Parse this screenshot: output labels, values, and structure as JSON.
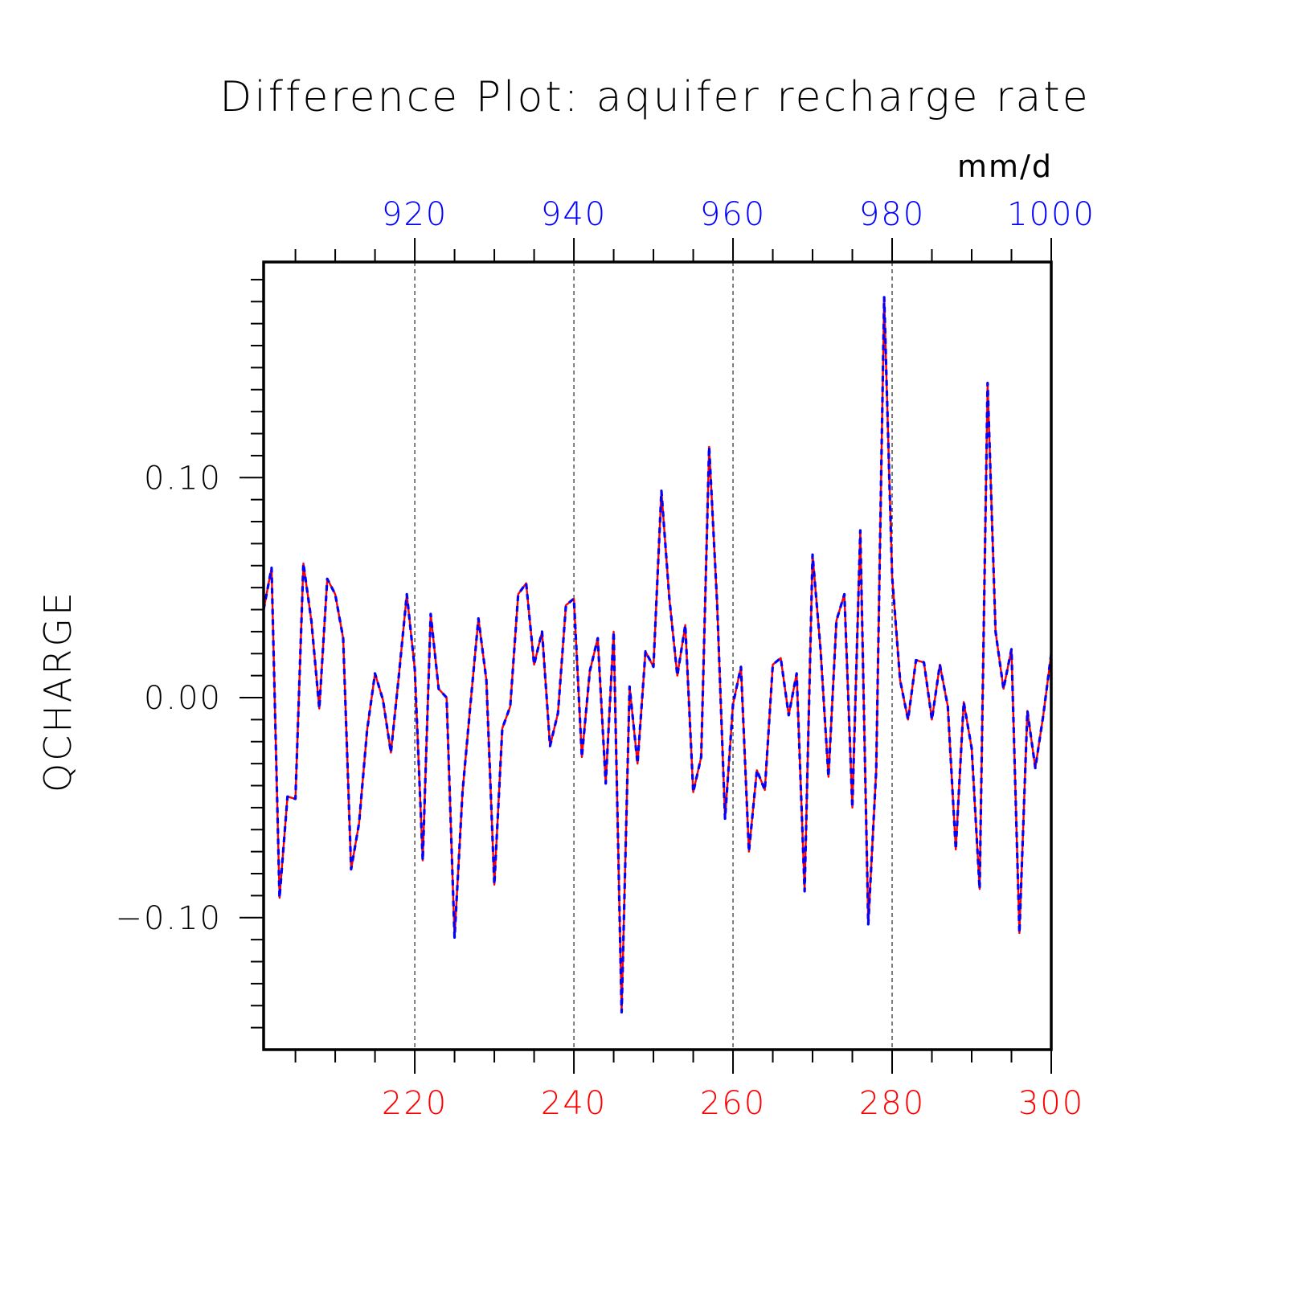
{
  "chart_data": {
    "type": "line",
    "title": "Difference Plot: aquifer recharge rate",
    "units": "mm/d",
    "ylabel": "QCHARGE",
    "xlabel": "",
    "ylim": [
      -0.16,
      0.198
    ],
    "y_ticks": [
      -0.1,
      0.0,
      0.1
    ],
    "y_tick_labels": [
      "−0.10",
      "0.00",
      "0.10"
    ],
    "bottom_axis": {
      "color": "#ff0000",
      "range": [
        201,
        300
      ],
      "ticks": [
        220,
        240,
        260,
        280,
        300
      ],
      "tick_labels": [
        "220",
        "240",
        "260",
        "280",
        "300"
      ]
    },
    "top_axis": {
      "color": "#0000ff",
      "range": [
        901,
        1000
      ],
      "ticks": [
        920,
        940,
        960,
        980,
        1000
      ],
      "tick_labels": [
        "920",
        "940",
        "960",
        "980",
        "1000"
      ]
    },
    "grid": "vertical dashed at major x ticks",
    "series": [
      {
        "color": "#ff0000",
        "style": "solid",
        "axis": "bottom",
        "x_start": 201,
        "values": [
          0.04,
          0.059,
          -0.091,
          -0.045,
          -0.046,
          0.061,
          0.035,
          -0.005,
          0.054,
          0.047,
          0.027,
          -0.078,
          -0.057,
          -0.015,
          0.011,
          -0.001,
          -0.025,
          0.01,
          0.047,
          0.013,
          -0.074,
          0.038,
          0.004,
          0.0,
          -0.109,
          -0.043,
          -0.003,
          0.036,
          0.008,
          -0.085,
          -0.014,
          -0.004,
          0.047,
          0.052,
          0.015,
          0.03,
          -0.022,
          -0.007,
          0.042,
          0.045,
          -0.027,
          0.012,
          0.027,
          -0.039,
          0.03,
          -0.143,
          0.005,
          -0.03,
          0.021,
          0.014,
          0.094,
          0.045,
          0.01,
          0.033,
          -0.043,
          -0.027,
          0.114,
          0.043,
          -0.055,
          -0.003,
          0.014,
          -0.07,
          -0.033,
          -0.042,
          0.015,
          0.018,
          -0.008,
          0.011,
          -0.088,
          0.065,
          0.022,
          -0.036,
          0.035,
          0.047,
          -0.05,
          0.076,
          -0.103,
          -0.033,
          0.182,
          0.055,
          0.008,
          -0.01,
          0.017,
          0.016,
          -0.01,
          0.015,
          -0.004,
          -0.069,
          -0.002,
          -0.023,
          -0.087,
          0.143,
          0.03,
          0.004,
          0.022,
          -0.107,
          -0.006,
          -0.032,
          -0.008,
          0.02
        ]
      },
      {
        "color": "#0000ff",
        "style": "dashed",
        "axis": "top",
        "x_start": 901,
        "values": [
          0.04,
          0.059,
          -0.091,
          -0.045,
          -0.046,
          0.061,
          0.035,
          -0.005,
          0.054,
          0.047,
          0.027,
          -0.078,
          -0.057,
          -0.015,
          0.011,
          -0.001,
          -0.025,
          0.01,
          0.047,
          0.013,
          -0.074,
          0.038,
          0.004,
          0.0,
          -0.109,
          -0.043,
          -0.003,
          0.036,
          0.008,
          -0.085,
          -0.014,
          -0.004,
          0.047,
          0.052,
          0.015,
          0.03,
          -0.022,
          -0.007,
          0.042,
          0.045,
          -0.027,
          0.012,
          0.027,
          -0.039,
          0.03,
          -0.143,
          0.005,
          -0.03,
          0.021,
          0.014,
          0.094,
          0.045,
          0.01,
          0.033,
          -0.043,
          -0.027,
          0.114,
          0.043,
          -0.055,
          -0.003,
          0.014,
          -0.07,
          -0.033,
          -0.042,
          0.015,
          0.018,
          -0.008,
          0.011,
          -0.088,
          0.065,
          0.022,
          -0.036,
          0.035,
          0.047,
          -0.05,
          0.076,
          -0.103,
          -0.033,
          0.182,
          0.055,
          0.008,
          -0.01,
          0.017,
          0.016,
          -0.01,
          0.015,
          -0.004,
          -0.069,
          -0.002,
          -0.023,
          -0.087,
          0.143,
          0.03,
          0.004,
          0.022,
          -0.107,
          -0.006,
          -0.032,
          -0.008,
          0.02
        ]
      }
    ]
  }
}
